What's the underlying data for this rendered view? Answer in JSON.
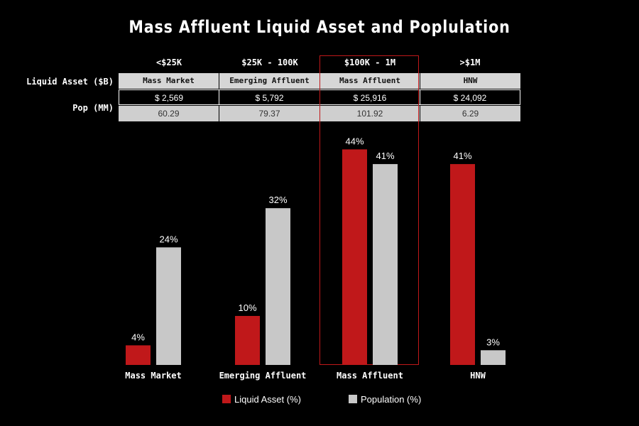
{
  "title": "Mass Affluent Liquid Asset and Poplulation",
  "table": {
    "column_headers": [
      "<$25K",
      "$25K - 100K",
      "$100K - 1M",
      ">$1M"
    ],
    "row_labels": {
      "segment": "Liquid Asset ($B)",
      "pop": "Pop (MM)"
    },
    "segments": [
      "Mass Market",
      "Emerging Affluent",
      "Mass Affluent",
      "HNW"
    ],
    "liquid_assets": [
      "$ 2,569",
      "$ 5,792",
      "$ 25,916",
      "$ 24,092"
    ],
    "population": [
      "60.29",
      "79.37",
      "101.92",
      "6.29"
    ]
  },
  "colors": {
    "liquid_asset": "#c0181a",
    "population": "#c8c8c8",
    "highlight": "#c0181a"
  },
  "highlighted_category": "Mass Affluent",
  "chart_data": {
    "type": "bar",
    "categories": [
      "Mass Market",
      "Emerging Affluent",
      "Mass Affluent",
      "HNW"
    ],
    "series": [
      {
        "name": "Liquid Asset (%)",
        "values": [
          4,
          10,
          44,
          41
        ],
        "labels": [
          "4%",
          "10%",
          "44%",
          "41%"
        ]
      },
      {
        "name": "Population (%)",
        "values": [
          24,
          32,
          41,
          3
        ],
        "labels": [
          "24%",
          "32%",
          "41%",
          "3%"
        ]
      }
    ],
    "ylim": [
      0,
      50
    ],
    "grid": false,
    "legend": "bottom"
  }
}
